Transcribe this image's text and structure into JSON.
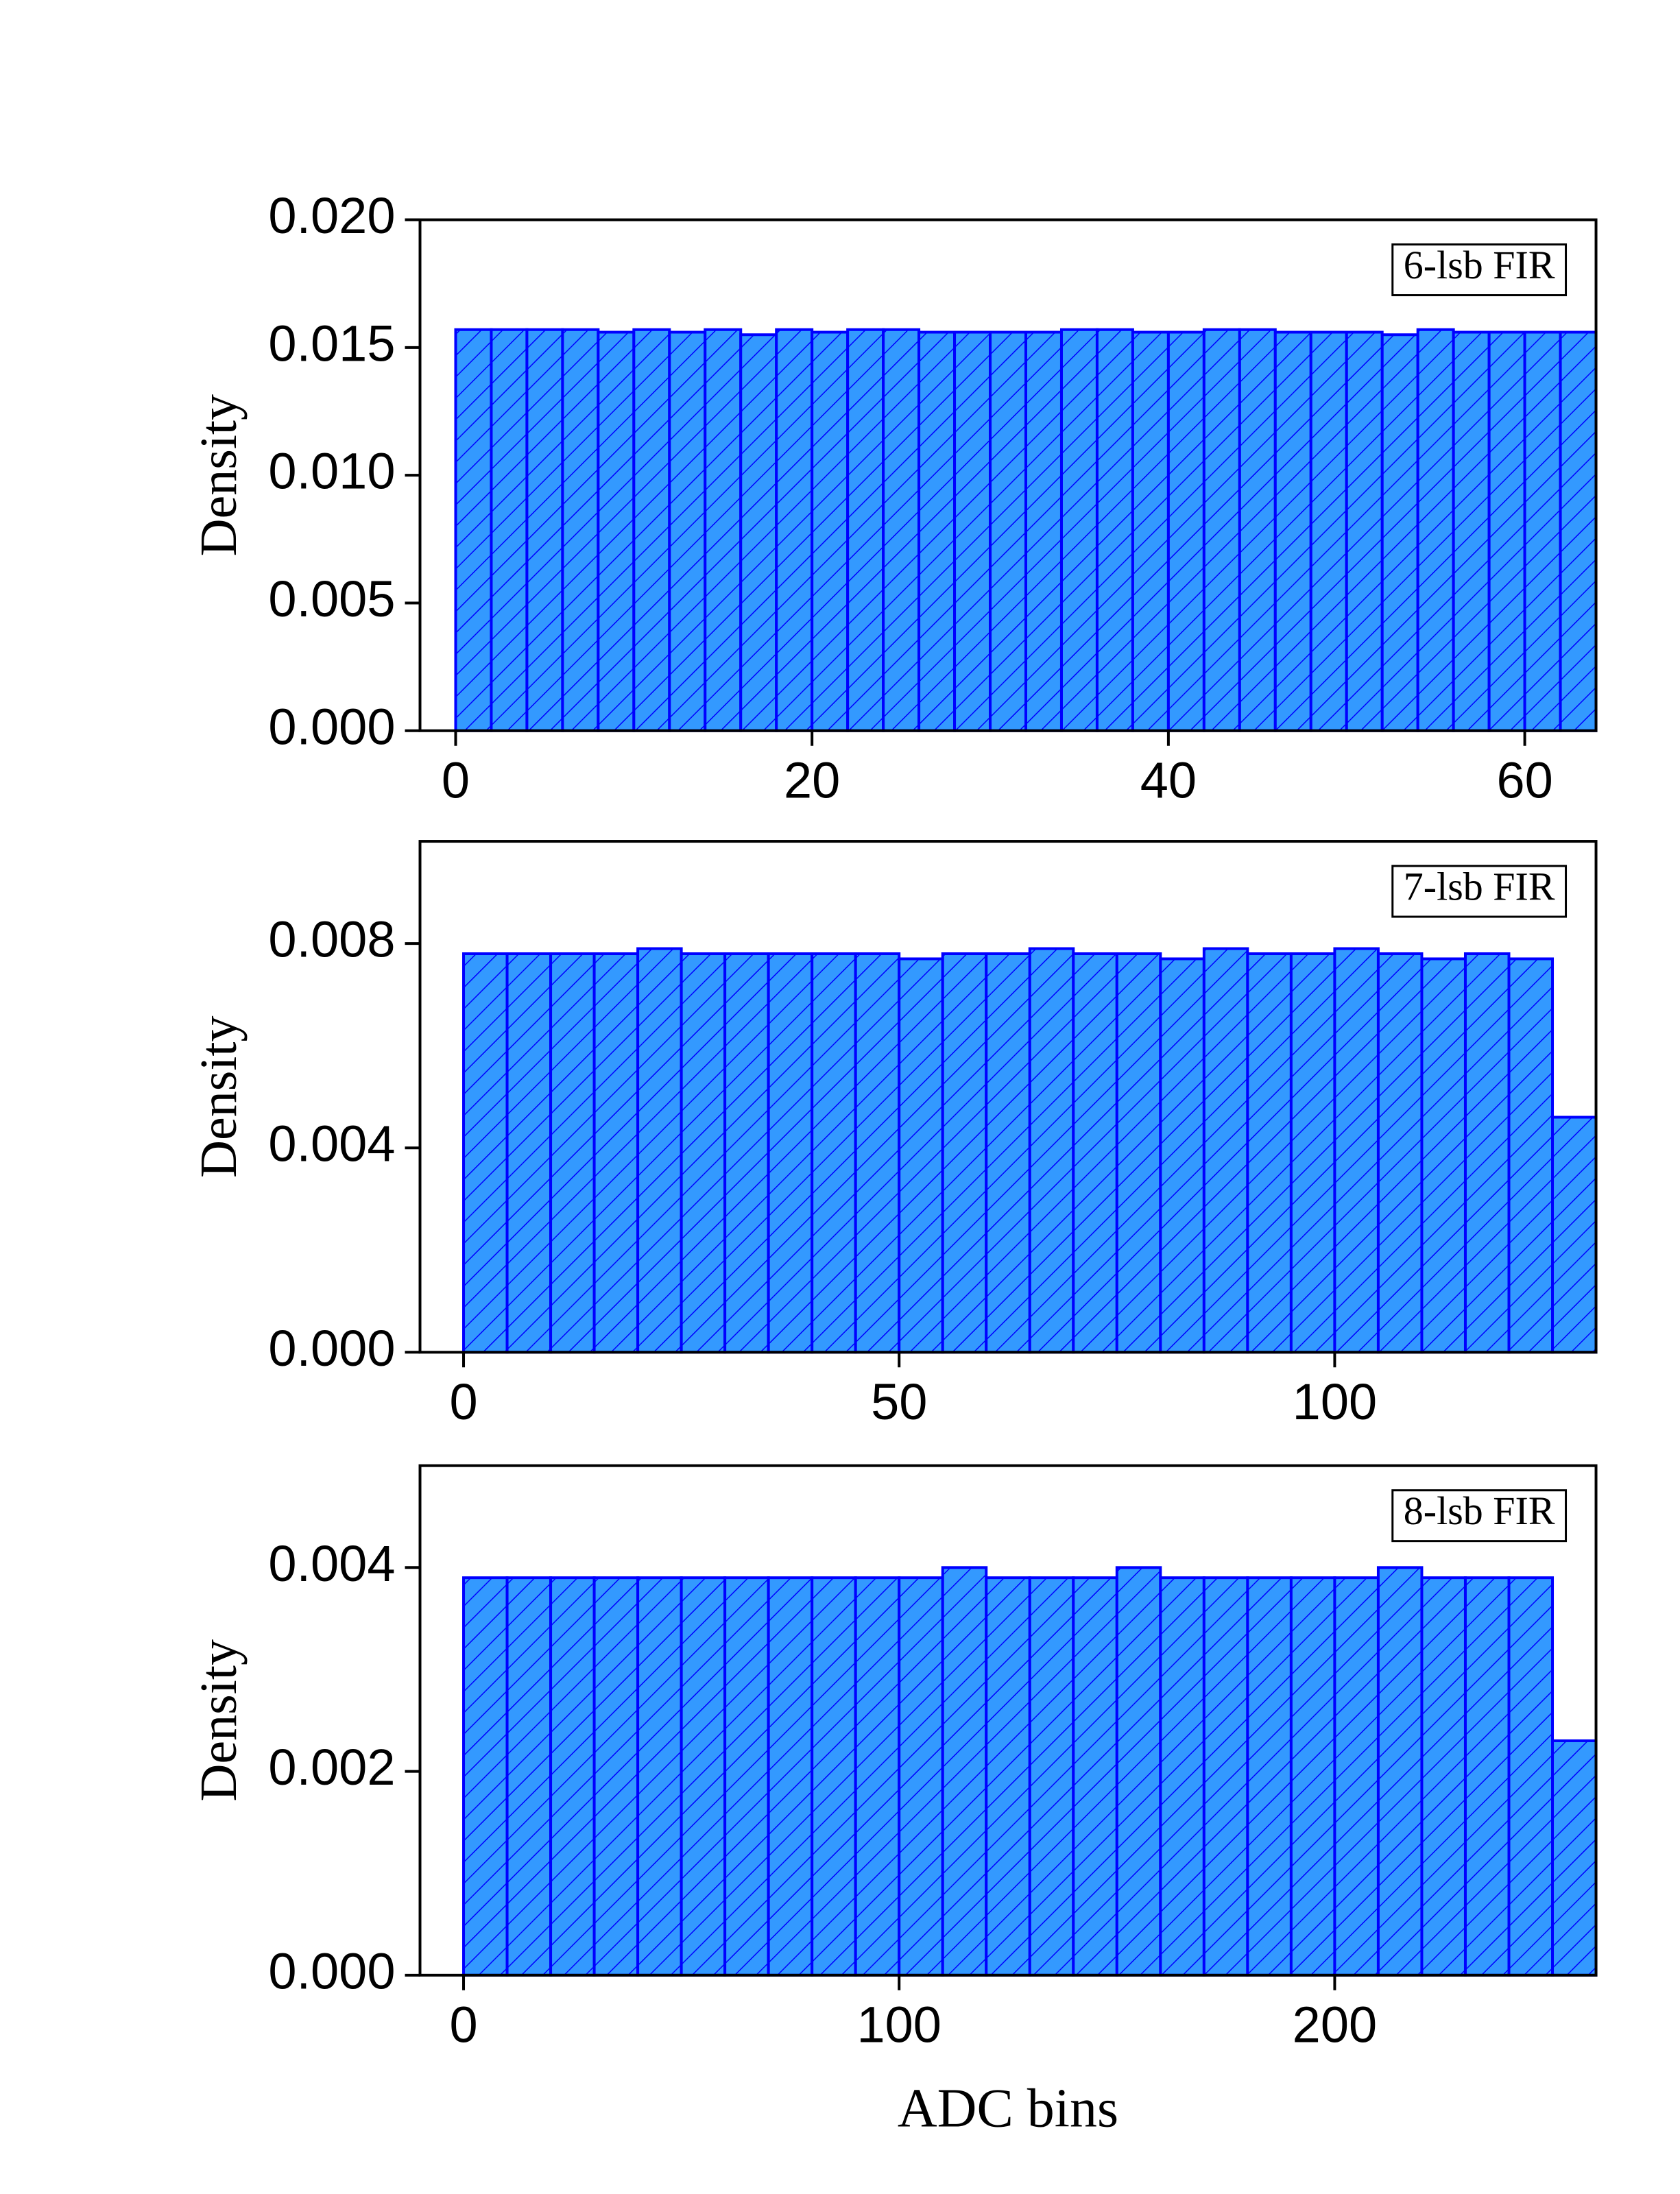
{
  "chart_data": [
    {
      "type": "histogram",
      "annotation": "6-lsb FIR",
      "ylabel": "Density",
      "bins": [
        0,
        2,
        4,
        6,
        8,
        10,
        12,
        14,
        16,
        18,
        20,
        22,
        24,
        26,
        28,
        30,
        32,
        34,
        36,
        38,
        40,
        42,
        44,
        46,
        48,
        50,
        52,
        54,
        56,
        58,
        60,
        62,
        64
      ],
      "values": [
        0.0157,
        0.0157,
        0.0157,
        0.0157,
        0.0156,
        0.0157,
        0.0156,
        0.0157,
        0.0155,
        0.0157,
        0.0156,
        0.0157,
        0.0157,
        0.0156,
        0.0156,
        0.0156,
        0.0156,
        0.0157,
        0.0157,
        0.0156,
        0.0156,
        0.0157,
        0.0157,
        0.0156,
        0.0156,
        0.0156,
        0.0155,
        0.0157,
        0.0156,
        0.0156,
        0.0156,
        0.0156
      ],
      "color": "#3399ff",
      "edgecolor": "#0000ff",
      "hatch": "/",
      "xlim": [
        -2,
        64
      ],
      "xticks": [
        0,
        20,
        40,
        60
      ],
      "ylim": [
        0,
        0.02
      ],
      "yticks": [
        {
          "value": 0,
          "label": "0.000"
        },
        {
          "value": 0.005,
          "label": "0.005"
        },
        {
          "value": 0.01,
          "label": "0.010"
        },
        {
          "value": 0.015,
          "label": "0.015"
        },
        {
          "value": 0.02,
          "label": "0.020"
        }
      ]
    },
    {
      "type": "histogram",
      "annotation": "7-lsb FIR",
      "ylabel": "Density",
      "bins": [
        0,
        5,
        10,
        15,
        20,
        25,
        30,
        35,
        40,
        45,
        50,
        55,
        60,
        65,
        70,
        75,
        80,
        85,
        90,
        95,
        100,
        105,
        110,
        115,
        120,
        125,
        130
      ],
      "values": [
        0.0078,
        0.0078,
        0.0078,
        0.0078,
        0.0079,
        0.0078,
        0.0078,
        0.0078,
        0.0078,
        0.0078,
        0.0077,
        0.0078,
        0.0078,
        0.0079,
        0.0078,
        0.0078,
        0.0077,
        0.0079,
        0.0078,
        0.0078,
        0.0079,
        0.0078,
        0.0077,
        0.0078,
        0.0077,
        0.0046
      ],
      "color": "#3399ff",
      "edgecolor": "#0000ff",
      "hatch": "/",
      "xlim": [
        -5,
        130
      ],
      "xticks": [
        0,
        50,
        100
      ],
      "ylim": [
        0,
        0.01
      ],
      "yticks": [
        {
          "value": 0,
          "label": "0.000"
        },
        {
          "value": 0.004,
          "label": "0.004"
        },
        {
          "value": 0.008,
          "label": "0.008"
        }
      ]
    },
    {
      "type": "histogram",
      "annotation": "8-lsb FIR",
      "ylabel": "Density",
      "xlabel": "ADC bins",
      "bins": [
        0,
        10,
        20,
        30,
        40,
        50,
        60,
        70,
        80,
        90,
        100,
        110,
        120,
        130,
        140,
        150,
        160,
        170,
        180,
        190,
        200,
        210,
        220,
        230,
        240,
        250,
        260
      ],
      "values": [
        0.0039,
        0.0039,
        0.0039,
        0.0039,
        0.0039,
        0.0039,
        0.0039,
        0.0039,
        0.0039,
        0.0039,
        0.0039,
        0.004,
        0.0039,
        0.0039,
        0.0039,
        0.004,
        0.0039,
        0.0039,
        0.0039,
        0.0039,
        0.0039,
        0.004,
        0.0039,
        0.0039,
        0.0039,
        0.0023
      ],
      "color": "#3399ff",
      "edgecolor": "#0000ff",
      "hatch": "/",
      "xlim": [
        -10,
        260
      ],
      "xticks": [
        0,
        100,
        200
      ],
      "ylim": [
        0,
        0.005
      ],
      "yticks": [
        {
          "value": 0,
          "label": "0.000"
        },
        {
          "value": 0.002,
          "label": "0.002"
        },
        {
          "value": 0.004,
          "label": "0.004"
        }
      ]
    }
  ]
}
